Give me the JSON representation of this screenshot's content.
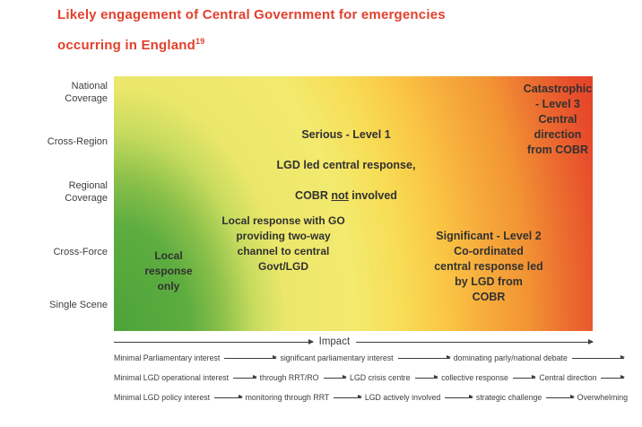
{
  "title": {
    "line1": "Likely engagement of Central Government for emergencies",
    "line2": "occurring in England",
    "superscript": "19"
  },
  "axis_labels": [
    "National\nCoverage",
    "Cross-Region",
    "Regional\nCoverage",
    "Cross-Force",
    "Single Scene"
  ],
  "zones": {
    "local": "Local\nresponse\nonly",
    "local_go": "Local response with GO\nproviding two-way\nchannel to central\nGovt/LGD",
    "serious_title": "Serious - Level 1",
    "serious_line2": "LGD led central response,",
    "serious_cobr_prefix": "COBR ",
    "serious_cobr_not": "not",
    "serious_cobr_suffix": " involved",
    "significant": "Significant - Level 2\nCo-ordinated\ncentral response led\nby LGD from\nCOBR",
    "catastrophic": "Catastrophic\n- Level 3\nCentral\ndirection\nfrom COBR"
  },
  "impact_label": "Impact",
  "progressions": [
    {
      "items": [
        "Minimal Parliamentary interest",
        "significant parliamentary interest",
        "dominating parly/national debate"
      ],
      "trailing_arrow": true
    },
    {
      "items": [
        "Minimal LGD operational interest",
        "through RRT/RO",
        "LGD crisis centre",
        "collective response",
        "Central direction"
      ],
      "trailing_arrow": true
    },
    {
      "items": [
        "Minimal LGD policy interest",
        "monitoring through RRT",
        "LGD actively involved",
        "strategic challenge",
        "Overwhelming"
      ],
      "trailing_arrow": false
    }
  ],
  "colors": {
    "title_red": "#e2402c",
    "zone_green": "#4ca339",
    "zone_yellow": "#f3ea6e",
    "zone_orange": "#f6a93b",
    "zone_red": "#e43427",
    "text": "#3d3d3d"
  }
}
